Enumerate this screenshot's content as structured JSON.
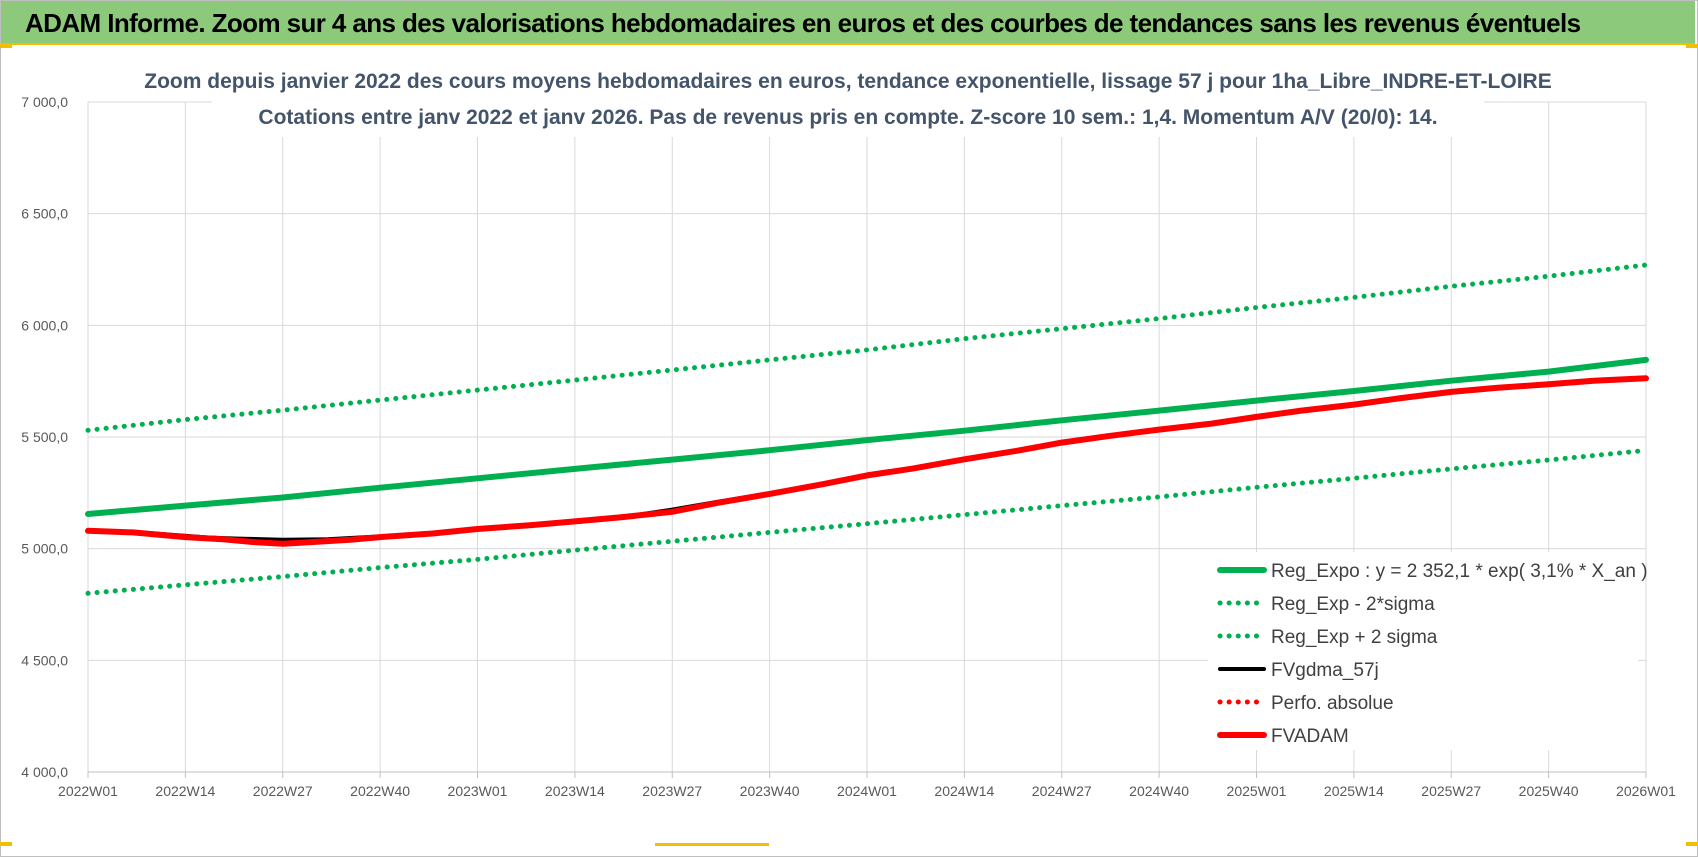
{
  "banner": {
    "title": "ADAM Informe. Zoom sur 4 ans des valorisations hebdomadaires en euros et des courbes de tendances sans les revenus éventuels"
  },
  "colors": {
    "banner_bg": "#8dc97a",
    "reg_expo": "#00b050",
    "band": "#00b050",
    "fvgdma": "#000000",
    "perfo": "#ff0000",
    "fvadam": "#ff0000"
  },
  "chart_data": {
    "type": "line",
    "title": [
      "Zoom depuis janvier 2022 des cours moyens hebdomadaires en euros, tendance exponentielle, lissage 57 j pour 1ha_Libre_INDRE-ET-LOIRE",
      "Cotations entre janv 2022 et janv 2026. Pas de revenus pris en compte. Z-score 10 sem.: 1,4. Momentum A/V (20/0): 14."
    ],
    "xlabel": "",
    "ylabel": "",
    "ylim": [
      4000,
      7000
    ],
    "x_range_weeks": [
      0,
      208
    ],
    "y_ticks": [
      {
        "value": 7000,
        "label": "7 000,0"
      },
      {
        "value": 6500,
        "label": "6 500,0"
      },
      {
        "value": 6000,
        "label": "6 000,0"
      },
      {
        "value": 5500,
        "label": "5 500,0"
      },
      {
        "value": 5000,
        "label": "5 000,0"
      },
      {
        "value": 4500,
        "label": "4 500,0"
      },
      {
        "value": 4000,
        "label": "4 000,0"
      }
    ],
    "x_ticks": [
      {
        "week": 0,
        "label": "2022W01"
      },
      {
        "week": 13,
        "label": "2022W14"
      },
      {
        "week": 26,
        "label": "2022W27"
      },
      {
        "week": 39,
        "label": "2022W40"
      },
      {
        "week": 52,
        "label": "2023W01"
      },
      {
        "week": 65,
        "label": "2023W14"
      },
      {
        "week": 78,
        "label": "2023W27"
      },
      {
        "week": 91,
        "label": "2023W40"
      },
      {
        "week": 104,
        "label": "2024W01"
      },
      {
        "week": 117,
        "label": "2024W14"
      },
      {
        "week": 130,
        "label": "2024W27"
      },
      {
        "week": 143,
        "label": "2024W40"
      },
      {
        "week": 156,
        "label": "2025W01"
      },
      {
        "week": 169,
        "label": "2025W14"
      },
      {
        "week": 182,
        "label": "2025W27"
      },
      {
        "week": 195,
        "label": "2025W40"
      },
      {
        "week": 208,
        "label": "2026W01"
      }
    ],
    "grid": true,
    "legend_position": "bottom-right",
    "series": [
      {
        "name": "Reg_Expo : y = 2 352,1 * exp( 3,1% *  X_an )",
        "style": "solid-thick",
        "color": "#00b050",
        "points": [
          [
            0,
            5155
          ],
          [
            13,
            5193
          ],
          [
            26,
            5229
          ],
          [
            39,
            5273
          ],
          [
            52,
            5315
          ],
          [
            65,
            5357
          ],
          [
            78,
            5399
          ],
          [
            91,
            5441
          ],
          [
            104,
            5486
          ],
          [
            117,
            5528
          ],
          [
            130,
            5575
          ],
          [
            143,
            5618
          ],
          [
            156,
            5663
          ],
          [
            169,
            5706
          ],
          [
            182,
            5752
          ],
          [
            195,
            5793
          ],
          [
            208,
            5845
          ]
        ]
      },
      {
        "name": "Reg_Exp - 2*sigma",
        "style": "dotted",
        "color": "#00b050",
        "points": [
          [
            0,
            4800
          ],
          [
            13,
            4838
          ],
          [
            26,
            4875
          ],
          [
            39,
            4915
          ],
          [
            52,
            4952
          ],
          [
            65,
            4993
          ],
          [
            78,
            5033
          ],
          [
            91,
            5073
          ],
          [
            104,
            5112
          ],
          [
            117,
            5152
          ],
          [
            130,
            5193
          ],
          [
            143,
            5232
          ],
          [
            156,
            5275
          ],
          [
            169,
            5315
          ],
          [
            182,
            5357
          ],
          [
            195,
            5397
          ],
          [
            208,
            5440
          ]
        ]
      },
      {
        "name": "Reg_Exp + 2 sigma",
        "style": "dotted",
        "color": "#00b050",
        "points": [
          [
            0,
            5530
          ],
          [
            13,
            5578
          ],
          [
            26,
            5620
          ],
          [
            39,
            5665
          ],
          [
            52,
            5710
          ],
          [
            65,
            5755
          ],
          [
            78,
            5800
          ],
          [
            91,
            5845
          ],
          [
            104,
            5890
          ],
          [
            117,
            5940
          ],
          [
            130,
            5985
          ],
          [
            143,
            6030
          ],
          [
            156,
            6080
          ],
          [
            169,
            6125
          ],
          [
            182,
            6175
          ],
          [
            195,
            6220
          ],
          [
            208,
            6270
          ]
        ]
      },
      {
        "name": "FVgdma_57j",
        "style": "solid",
        "color": "#000000",
        "points": [
          [
            0,
            5080
          ],
          [
            8,
            5070
          ],
          [
            16,
            5050
          ],
          [
            20,
            5045
          ],
          [
            26,
            5040
          ],
          [
            32,
            5042
          ],
          [
            39,
            5055
          ],
          [
            46,
            5070
          ],
          [
            52,
            5090
          ],
          [
            60,
            5108
          ],
          [
            66,
            5125
          ],
          [
            72,
            5145
          ],
          [
            78,
            5175
          ],
          [
            84,
            5210
          ],
          [
            91,
            5248
          ],
          [
            98,
            5290
          ],
          [
            104,
            5330
          ],
          [
            110,
            5358
          ],
          [
            117,
            5400
          ],
          [
            124,
            5438
          ],
          [
            130,
            5478
          ],
          [
            136,
            5505
          ],
          [
            143,
            5535
          ],
          [
            150,
            5562
          ],
          [
            156,
            5590
          ],
          [
            162,
            5618
          ],
          [
            169,
            5645
          ],
          [
            175,
            5675
          ],
          [
            182,
            5705
          ],
          [
            188,
            5722
          ],
          [
            195,
            5738
          ],
          [
            201,
            5752
          ],
          [
            208,
            5765
          ]
        ]
      },
      {
        "name": "Perfo. absolue",
        "style": "dotted",
        "color": "#ff0000",
        "points": []
      },
      {
        "name": "FVADAM",
        "style": "solid-thick",
        "color": "#ff0000",
        "points": [
          [
            0,
            5080
          ],
          [
            6,
            5073
          ],
          [
            13,
            5052
          ],
          [
            18,
            5042
          ],
          [
            22,
            5030
          ],
          [
            26,
            5022
          ],
          [
            30,
            5030
          ],
          [
            35,
            5040
          ],
          [
            39,
            5052
          ],
          [
            46,
            5068
          ],
          [
            52,
            5088
          ],
          [
            59,
            5105
          ],
          [
            65,
            5122
          ],
          [
            71,
            5140
          ],
          [
            78,
            5165
          ],
          [
            84,
            5205
          ],
          [
            91,
            5245
          ],
          [
            98,
            5288
          ],
          [
            104,
            5328
          ],
          [
            110,
            5358
          ],
          [
            117,
            5400
          ],
          [
            124,
            5438
          ],
          [
            130,
            5475
          ],
          [
            136,
            5503
          ],
          [
            143,
            5533
          ],
          [
            150,
            5560
          ],
          [
            156,
            5590
          ],
          [
            162,
            5618
          ],
          [
            169,
            5645
          ],
          [
            175,
            5673
          ],
          [
            182,
            5702
          ],
          [
            188,
            5720
          ],
          [
            195,
            5736
          ],
          [
            201,
            5752
          ],
          [
            208,
            5763
          ]
        ]
      }
    ]
  }
}
